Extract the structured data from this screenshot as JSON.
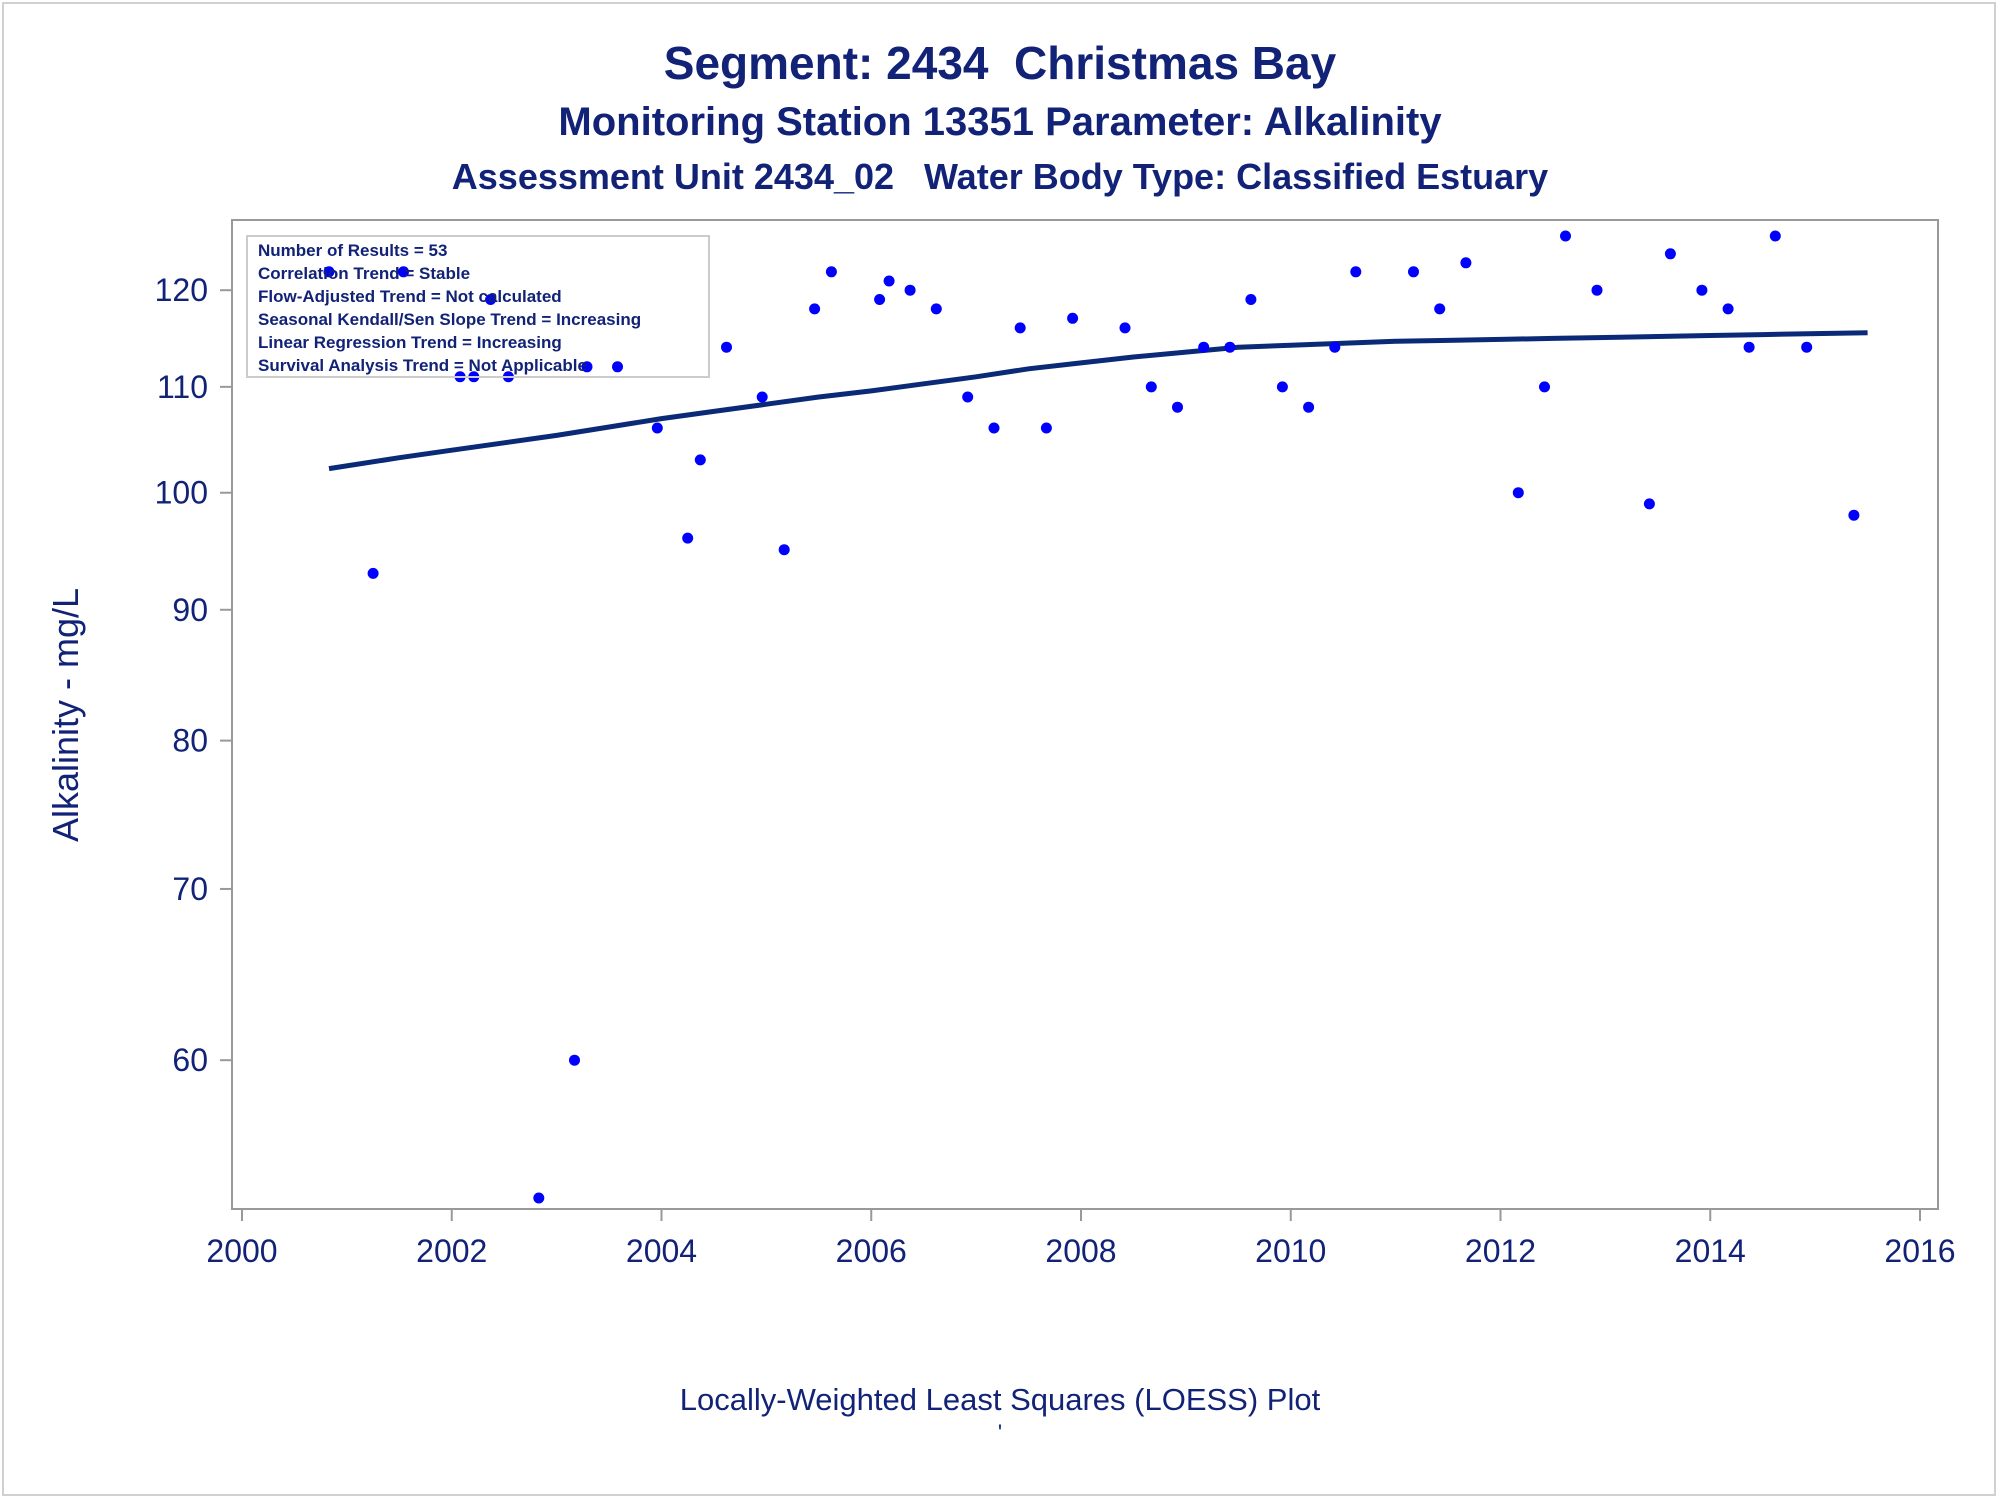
{
  "titles": {
    "line1": "Segment: 2434  Christmas Bay",
    "line2": "Monitoring Station 13351 Parameter: Alkalinity",
    "line3": "Assessment Unit 2434_02   Water Body Type: Classified Estuary"
  },
  "footnotes": {
    "line1": "Locally-Weighted Least Squares (LOESS) Plot",
    "line2": "'"
  },
  "colors": {
    "text": "#112277",
    "points": "#0000ff",
    "loess": "#0a2a78",
    "axis": "#999999"
  },
  "chart_data": {
    "type": "scatter",
    "ylabel": "Alkalinity - mg/L",
    "xlabel": "",
    "y_scale": "log",
    "xlim": [
      2000,
      2016
    ],
    "ylim": [
      53,
      126
    ],
    "x_ticks": [
      2000,
      2002,
      2004,
      2006,
      2008,
      2010,
      2012,
      2014,
      2016
    ],
    "y_ticks": [
      60,
      70,
      80,
      90,
      100,
      110,
      120
    ],
    "grid": false,
    "stats_box": [
      "Number of Results = 53",
      "Correlation Trend = Stable",
      "Flow-Adjusted Trend = Not calculated",
      "Seasonal Kendall/Sen Slope Trend = Increasing",
      "Linear Regression Trend = Increasing",
      "Survival Analysis Trend = Not Applicable"
    ],
    "points": [
      {
        "x": 2000.83,
        "y": 122
      },
      {
        "x": 2001.25,
        "y": 93
      },
      {
        "x": 2001.54,
        "y": 122
      },
      {
        "x": 2002.08,
        "y": 111
      },
      {
        "x": 2002.21,
        "y": 111
      },
      {
        "x": 2002.37,
        "y": 119
      },
      {
        "x": 2002.54,
        "y": 111
      },
      {
        "x": 2002.83,
        "y": 53
      },
      {
        "x": 2003.17,
        "y": 60
      },
      {
        "x": 2003.29,
        "y": 112
      },
      {
        "x": 2003.58,
        "y": 112
      },
      {
        "x": 2003.96,
        "y": 106
      },
      {
        "x": 2004.25,
        "y": 96
      },
      {
        "x": 2004.37,
        "y": 103
      },
      {
        "x": 2004.62,
        "y": 114
      },
      {
        "x": 2004.96,
        "y": 109
      },
      {
        "x": 2005.17,
        "y": 95
      },
      {
        "x": 2005.46,
        "y": 118
      },
      {
        "x": 2005.62,
        "y": 122
      },
      {
        "x": 2006.08,
        "y": 119
      },
      {
        "x": 2006.17,
        "y": 121
      },
      {
        "x": 2006.37,
        "y": 120
      },
      {
        "x": 2006.62,
        "y": 118
      },
      {
        "x": 2006.92,
        "y": 109
      },
      {
        "x": 2007.17,
        "y": 106
      },
      {
        "x": 2007.42,
        "y": 116
      },
      {
        "x": 2007.67,
        "y": 106
      },
      {
        "x": 2007.92,
        "y": 117
      },
      {
        "x": 2008.42,
        "y": 116
      },
      {
        "x": 2008.67,
        "y": 110
      },
      {
        "x": 2008.92,
        "y": 108
      },
      {
        "x": 2009.17,
        "y": 114
      },
      {
        "x": 2009.42,
        "y": 114
      },
      {
        "x": 2009.62,
        "y": 119
      },
      {
        "x": 2009.92,
        "y": 110
      },
      {
        "x": 2010.17,
        "y": 108
      },
      {
        "x": 2010.42,
        "y": 114
      },
      {
        "x": 2010.62,
        "y": 122
      },
      {
        "x": 2011.17,
        "y": 122
      },
      {
        "x": 2011.42,
        "y": 118
      },
      {
        "x": 2011.67,
        "y": 123
      },
      {
        "x": 2012.17,
        "y": 100
      },
      {
        "x": 2012.42,
        "y": 110
      },
      {
        "x": 2012.62,
        "y": 126
      },
      {
        "x": 2012.92,
        "y": 120
      },
      {
        "x": 2013.42,
        "y": 99
      },
      {
        "x": 2013.62,
        "y": 124
      },
      {
        "x": 2013.92,
        "y": 120
      },
      {
        "x": 2014.17,
        "y": 118
      },
      {
        "x": 2014.37,
        "y": 114
      },
      {
        "x": 2014.62,
        "y": 126
      },
      {
        "x": 2014.92,
        "y": 114
      },
      {
        "x": 2015.37,
        "y": 98
      }
    ],
    "loess": {
      "x": [
        2000.83,
        2001.5,
        2002.0,
        2002.5,
        2003.0,
        2003.5,
        2004.0,
        2004.5,
        2005.0,
        2005.5,
        2006.0,
        2006.5,
        2007.0,
        2007.5,
        2008.0,
        2008.5,
        2009.0,
        2009.5,
        2010.0,
        2010.5,
        2011.0,
        2011.5,
        2012.0,
        2012.5,
        2013.0,
        2013.5,
        2014.0,
        2014.5,
        2015.0,
        2015.5
      ],
      "y": [
        102.2,
        103.2,
        103.9,
        104.6,
        105.3,
        106.1,
        106.9,
        107.6,
        108.3,
        109.0,
        109.6,
        110.3,
        111.0,
        111.8,
        112.4,
        113.0,
        113.5,
        114.0,
        114.2,
        114.4,
        114.6,
        114.7,
        114.8,
        114.9,
        115.0,
        115.1,
        115.2,
        115.3,
        115.4,
        115.5
      ]
    }
  }
}
